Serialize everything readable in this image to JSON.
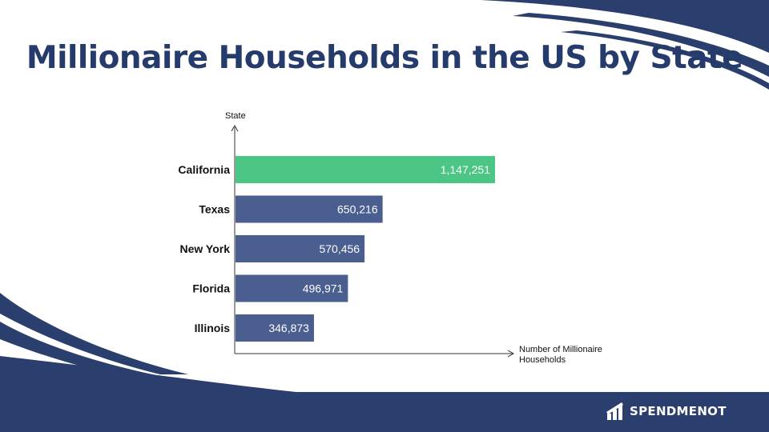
{
  "title": "Millionaire Households in the US by State",
  "brand": {
    "name": "SPENDMENOT",
    "logo_icon": "spendmenot-logo-icon"
  },
  "colors": {
    "primary": "#2b3f6e",
    "bar_default": "#4a5e90",
    "bar_highlight": "#4cc684",
    "background": "#ffffff"
  },
  "chart_data": {
    "type": "bar",
    "orientation": "horizontal",
    "title": "Millionaire Households in the US by State",
    "categories": [
      "California",
      "Texas",
      "New York",
      "Florida",
      "Illinois"
    ],
    "values": [
      1147251,
      650216,
      570456,
      496971,
      346873
    ],
    "value_labels": [
      "1,147,251",
      "650,216",
      "570,456",
      "496,971",
      "346,873"
    ],
    "highlight": "California",
    "xlabel": "Number of Millionaire Households",
    "ylabel": "State",
    "grid": false,
    "legend": "none"
  }
}
